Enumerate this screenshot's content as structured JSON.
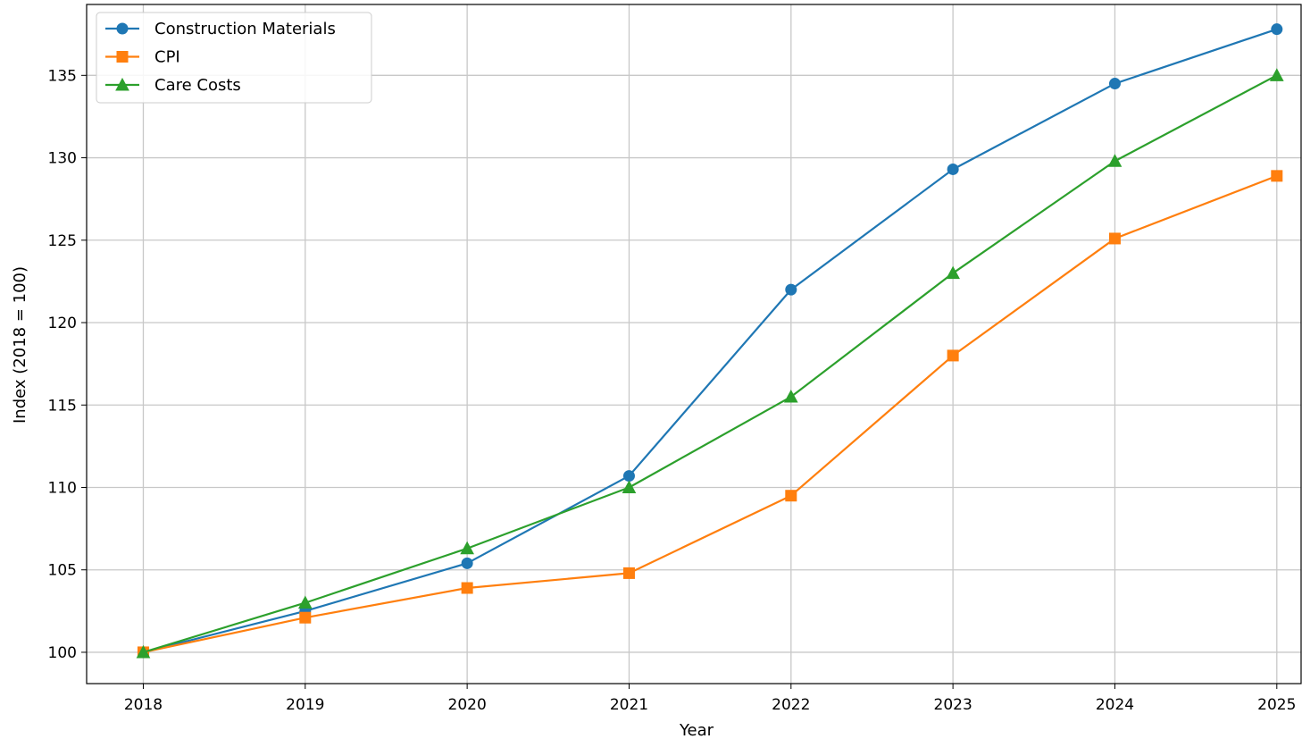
{
  "chart_data": {
    "type": "line",
    "title": "",
    "xlabel": "Year",
    "ylabel": "Index (2018 = 100)",
    "x": [
      2018,
      2019,
      2020,
      2021,
      2022,
      2023,
      2024,
      2025
    ],
    "xlim": [
      2017.65,
      2025.15
    ],
    "ylim": [
      98.1,
      139.3
    ],
    "xticks": [
      "2018",
      "2019",
      "2020",
      "2021",
      "2022",
      "2023",
      "2024",
      "2025"
    ],
    "yticks": [
      100,
      105,
      110,
      115,
      120,
      125,
      130,
      135
    ],
    "ytick_labels": [
      "100",
      "105",
      "110",
      "115",
      "120",
      "125",
      "130",
      "135"
    ],
    "grid": true,
    "legend_position": "top-left",
    "series": [
      {
        "name": "Construction Materials",
        "color": "#1f77b4",
        "marker": "circle",
        "values": [
          100.0,
          102.5,
          105.4,
          110.7,
          122.0,
          129.3,
          134.5,
          137.8
        ]
      },
      {
        "name": "CPI",
        "color": "#ff7f0e",
        "marker": "square",
        "values": [
          100.0,
          102.1,
          103.9,
          104.8,
          109.5,
          118.0,
          125.1,
          128.9
        ]
      },
      {
        "name": "Care Costs",
        "color": "#2ca02c",
        "marker": "triangle",
        "values": [
          100.0,
          103.0,
          106.3,
          110.0,
          115.5,
          123.0,
          129.8,
          135.0
        ]
      }
    ]
  }
}
